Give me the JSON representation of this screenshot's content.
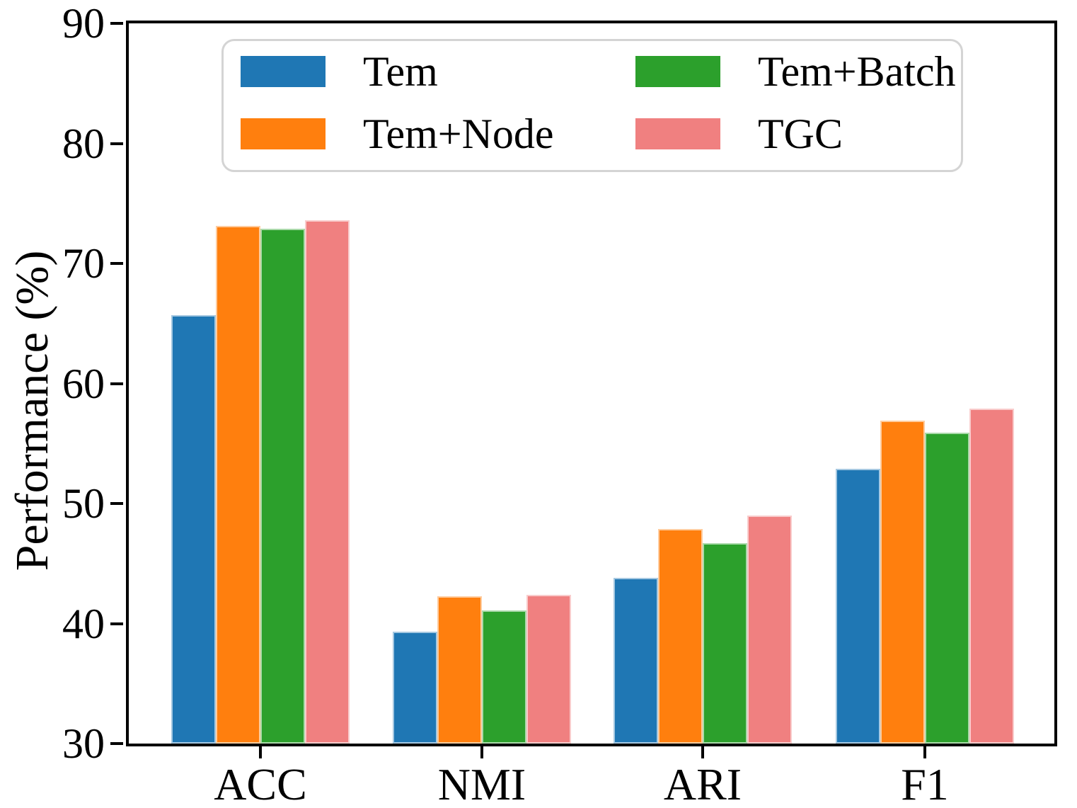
{
  "chart_data": {
    "type": "bar",
    "title": "",
    "ylabel": "Performance (%)",
    "xlabel": "",
    "categories": [
      "ACC",
      "NMI",
      "ARI",
      "F1"
    ],
    "series": [
      {
        "name": "Tem",
        "color": "#1f77b4",
        "values": [
          65.7,
          39.3,
          43.8,
          52.9
        ]
      },
      {
        "name": "Tem+Node",
        "color": "#ff7f0e",
        "values": [
          73.1,
          42.3,
          47.9,
          56.9
        ]
      },
      {
        "name": "Tem+Batch",
        "color": "#2ca02c",
        "values": [
          72.9,
          41.1,
          46.7,
          55.9
        ]
      },
      {
        "name": "TGC",
        "color": "#f08080",
        "values": [
          73.6,
          42.4,
          49.0,
          57.9
        ]
      }
    ],
    "ylim": [
      30,
      90
    ],
    "yticks": [
      30,
      40,
      50,
      60,
      70,
      80,
      90
    ],
    "grid": false,
    "legend_position": "upper center, 2 columns",
    "legend_order_column_major": [
      "Tem",
      "Tem+Node",
      "Tem+Batch",
      "TGC"
    ],
    "spine_color": "#000000",
    "legend_border_color": "#d4d4d4"
  }
}
